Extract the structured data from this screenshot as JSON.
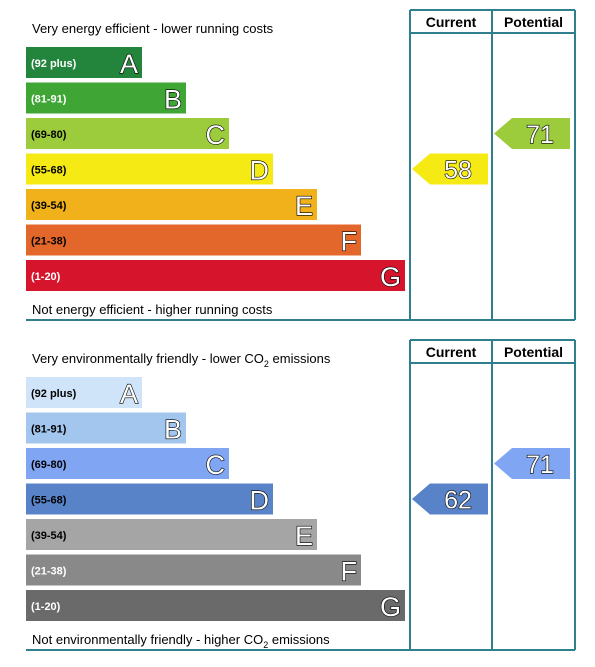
{
  "panels": [
    {
      "top_text": [
        "Very energy efficient - lower running costs"
      ],
      "bottom_text": [
        "Not energy efficient - higher running costs"
      ],
      "current_header": "Current",
      "potential_header": "Potential",
      "bands": [
        {
          "range": "(92 plus)",
          "letter": "A",
          "color": "#23843c",
          "text_color": "#fff"
        },
        {
          "range": "(81-91)",
          "letter": "B",
          "color": "#3fa535",
          "text_color": "#fff"
        },
        {
          "range": "(69-80)",
          "letter": "C",
          "color": "#9ccb3b",
          "text_color": "#000"
        },
        {
          "range": "(55-68)",
          "letter": "D",
          "color": "#f5ea14",
          "text_color": "#000"
        },
        {
          "range": "(39-54)",
          "letter": "E",
          "color": "#f0b11a",
          "text_color": "#000"
        },
        {
          "range": "(21-38)",
          "letter": "F",
          "color": "#e3672a",
          "text_color": "#000"
        },
        {
          "range": "(1-20)",
          "letter": "G",
          "color": "#d6152d",
          "text_color": "#fff"
        }
      ],
      "current": 58,
      "potential": 71
    },
    {
      "top_text": [
        "Very environmentally friendly - lower CO",
        "2",
        " emissions"
      ],
      "bottom_text": [
        "Not environmentally friendly - higher CO",
        "2",
        " emissions"
      ],
      "current_header": "Current",
      "potential_header": "Potential",
      "bands": [
        {
          "range": "(92 plus)",
          "letter": "A",
          "color": "#cfe4f8",
          "text_color": "#000"
        },
        {
          "range": "(81-91)",
          "letter": "B",
          "color": "#a3c6ef",
          "text_color": "#000"
        },
        {
          "range": "(69-80)",
          "letter": "C",
          "color": "#7fa5f3",
          "text_color": "#000"
        },
        {
          "range": "(55-68)",
          "letter": "D",
          "color": "#5883c9",
          "text_color": "#000"
        },
        {
          "range": "(39-54)",
          "letter": "E",
          "color": "#a5a5a5",
          "text_color": "#000"
        },
        {
          "range": "(21-38)",
          "letter": "F",
          "color": "#898989",
          "text_color": "#fff"
        },
        {
          "range": "(1-20)",
          "letter": "G",
          "color": "#6a6a6a",
          "text_color": "#fff"
        }
      ],
      "current": 62,
      "potential": 71
    }
  ]
}
